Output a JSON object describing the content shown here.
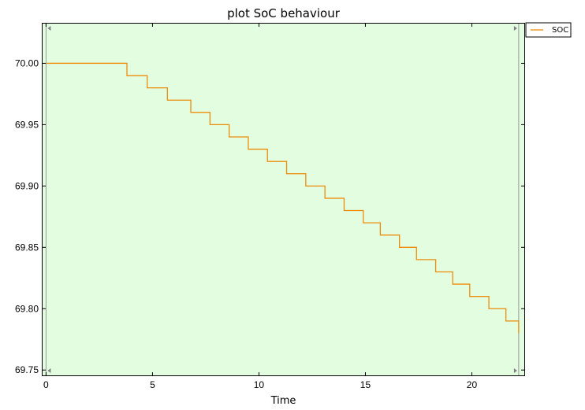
{
  "chart_data": {
    "type": "line",
    "title": "plot SoC behaviour",
    "xlabel": "Time",
    "ylabel": "",
    "xlim": [
      -0.2,
      22.5
    ],
    "ylim": [
      69.745,
      70.033
    ],
    "xticks": [
      0,
      5,
      10,
      15,
      20
    ],
    "yticks": [
      69.75,
      69.8,
      69.85,
      69.9,
      69.95,
      70.0
    ],
    "xtick_labels": [
      "0",
      "5",
      "10",
      "15",
      "20"
    ],
    "ytick_labels": [
      "69.75",
      "69.80",
      "69.85",
      "69.90",
      "69.95",
      "70.00"
    ],
    "grid": false,
    "legend_position": "outside-top-right",
    "plot_background": "#e2fde0",
    "series": [
      {
        "name": "SOC",
        "color": "#ee8c0a",
        "step": true,
        "x": [
          0,
          3.8,
          4.75,
          5.7,
          6.8,
          7.7,
          8.6,
          9.5,
          10.4,
          11.3,
          12.2,
          13.1,
          14.0,
          14.9,
          15.7,
          16.6,
          17.4,
          18.3,
          19.1,
          19.9,
          20.8,
          21.6,
          22.2
        ],
        "y": [
          70.0,
          69.99,
          69.98,
          69.97,
          69.96,
          69.95,
          69.94,
          69.93,
          69.92,
          69.91,
          69.9,
          69.89,
          69.88,
          69.87,
          69.86,
          69.85,
          69.84,
          69.83,
          69.82,
          69.81,
          69.8,
          69.79,
          69.78
        ]
      }
    ],
    "vertical_markers": [
      0,
      22.2
    ]
  }
}
